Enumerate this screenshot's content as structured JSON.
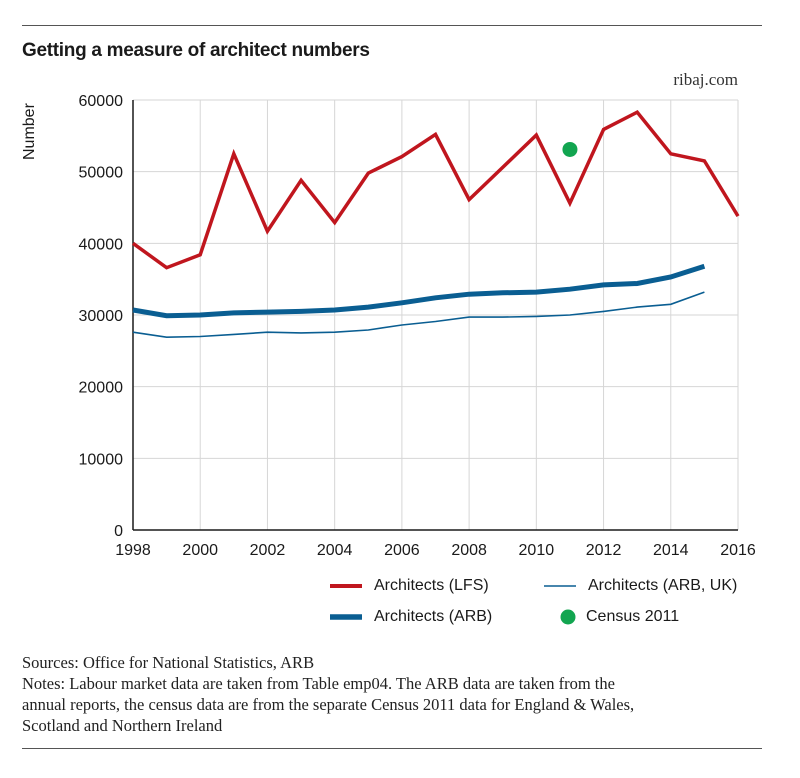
{
  "header": {
    "title": "Getting a measure of architect numbers",
    "site": "ribaj.com"
  },
  "colors": {
    "lfs": "#c0161e",
    "arb": "#0a5e92",
    "arb_uk": "#0a5e92",
    "census": "#12a550",
    "grid": "#d6d6d6",
    "axis": "#1a1a1a"
  },
  "chart_data": {
    "type": "line",
    "title": "Getting a measure of architect numbers",
    "xlabel": "",
    "ylabel": "Number",
    "xlim": [
      1998,
      2016
    ],
    "ylim": [
      0,
      60000
    ],
    "x_ticks": [
      "1998",
      "2000",
      "2002",
      "2004",
      "2006",
      "2008",
      "2010",
      "2012",
      "2014",
      "2016"
    ],
    "y_ticks": [
      "0",
      "10000",
      "20000",
      "30000",
      "40000",
      "50000",
      "60000"
    ],
    "grid": true,
    "legend_position": "bottom",
    "series": [
      {
        "name": "Architects (LFS)",
        "style": "thick-line",
        "color": "#c0161e",
        "x": [
          1998,
          1999,
          2000,
          2001,
          2002,
          2003,
          2004,
          2005,
          2006,
          2007,
          2008,
          2009,
          2010,
          2011,
          2012,
          2013,
          2014,
          2015,
          2016
        ],
        "y": [
          40000,
          36600,
          38400,
          52500,
          41700,
          48800,
          42900,
          49800,
          52100,
          55200,
          46100,
          50600,
          55100,
          45600,
          55900,
          58300,
          52500,
          51500,
          43800
        ]
      },
      {
        "name": "Architects (ARB)",
        "style": "extra-thick-line",
        "color": "#0a5e92",
        "x": [
          1998,
          1999,
          2000,
          2001,
          2002,
          2003,
          2004,
          2005,
          2006,
          2007,
          2008,
          2009,
          2010,
          2011,
          2012,
          2013,
          2014,
          2015
        ],
        "y": [
          30700,
          29900,
          30000,
          30300,
          30400,
          30500,
          30700,
          31100,
          31700,
          32400,
          32900,
          33100,
          33200,
          33600,
          34200,
          34400,
          35300,
          36800
        ]
      },
      {
        "name": "Architects (ARB, UK)",
        "style": "thin-line",
        "color": "#0a5e92",
        "x": [
          1998,
          1999,
          2000,
          2001,
          2002,
          2003,
          2004,
          2005,
          2006,
          2007,
          2008,
          2009,
          2010,
          2011,
          2012,
          2013,
          2014,
          2015
        ],
        "y": [
          27600,
          26900,
          27000,
          27300,
          27600,
          27500,
          27600,
          27900,
          28600,
          29100,
          29700,
          29700,
          29800,
          30000,
          30500,
          31100,
          31500,
          33200
        ]
      },
      {
        "name": "Census 2011",
        "style": "point",
        "color": "#12a550",
        "x": [
          2011
        ],
        "y": [
          53100
        ]
      }
    ]
  },
  "legend": [
    {
      "label": "Architects (LFS)",
      "style": "thick-line",
      "color": "#c0161e"
    },
    {
      "label": "Architects (ARB, UK)",
      "style": "thin-line",
      "color": "#0a5e92"
    },
    {
      "label": "Architects (ARB)",
      "style": "extra-thick-line",
      "color": "#0a5e92"
    },
    {
      "label": "Census 2011",
      "style": "point",
      "color": "#12a550"
    }
  ],
  "notes": {
    "sources": "Sources: Office for National Statistics, ARB",
    "notes_line1": "Notes: Labour market data are taken from Table emp04. The ARB data are taken from the",
    "notes_line2": "annual reports, the census data are from the separate Census 2011 data for England & Wales,",
    "notes_line3": "Scotland and Northern Ireland"
  }
}
